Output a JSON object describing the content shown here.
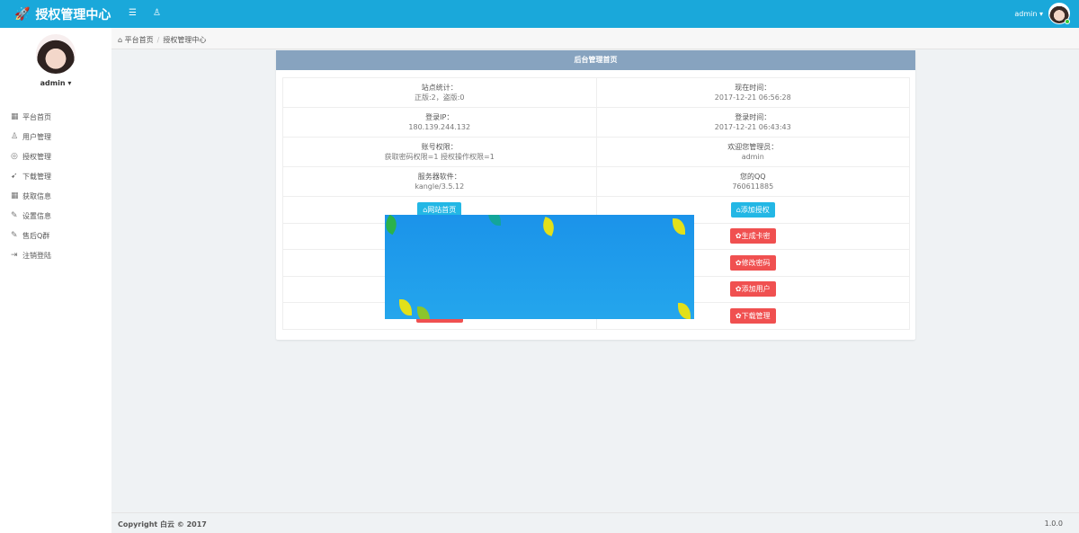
{
  "header": {
    "title": "授权管理中心",
    "user": "admin"
  },
  "sidebar": {
    "username": "admin",
    "items": [
      {
        "label": "平台首页",
        "icon": "grid-icon"
      },
      {
        "label": "用户管理",
        "icon": "user-icon"
      },
      {
        "label": "授权管理",
        "icon": "layers-icon"
      },
      {
        "label": "下载管理",
        "icon": "rocket-icon"
      },
      {
        "label": "获取信息",
        "icon": "grid-icon"
      },
      {
        "label": "设置信息",
        "icon": "edit-icon"
      },
      {
        "label": "售后Q群",
        "icon": "edit-icon"
      },
      {
        "label": "注销登陆",
        "icon": "logout-icon"
      }
    ]
  },
  "breadcrumb": {
    "home": "平台首页",
    "current": "授权管理中心"
  },
  "panel": {
    "title": "后台管理首页",
    "rows": [
      [
        {
          "label": "站点统计：",
          "value": "正版:2，盗版:0"
        },
        {
          "label": "现在时间：",
          "value": "2017-12-21 06:56:28"
        }
      ],
      [
        {
          "label": "登录IP：",
          "value": "180.139.244.132"
        },
        {
          "label": "登录时间：",
          "value": "2017-12-21 06:43:43"
        }
      ],
      [
        {
          "label": "账号权限：",
          "value": "获取密码权限=1 授权操作权限=1"
        },
        {
          "label": "欢迎您管理员：",
          "value": "admin"
        }
      ],
      [
        {
          "label": "服务器软件：",
          "value": "kangle/3.5.12"
        },
        {
          "label": "您的QQ",
          "value": "760611885"
        }
      ]
    ],
    "left_button": "网站首页",
    "right_buttons": [
      "添加授权",
      "生成卡密",
      "修改密码",
      "添加用户",
      "下载管理"
    ]
  },
  "colors": {
    "topbar": "#1aa8da",
    "panel_header": "#87a3bf",
    "btn_info": "#23b7e5",
    "btn_danger": "#f05050"
  },
  "footer": {
    "copyright": "Copyright 白云 © 2017",
    "version": "1.0.0"
  }
}
